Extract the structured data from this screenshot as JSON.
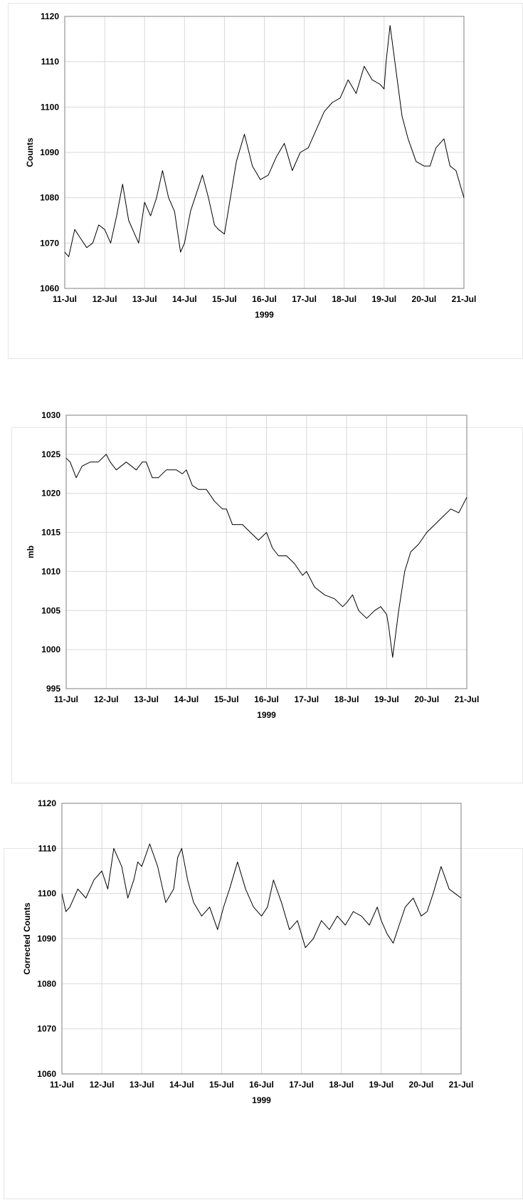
{
  "chart_data": [
    {
      "type": "line",
      "xlabel": "1999",
      "ylabel": "Counts",
      "ylim": [
        1060,
        1120
      ],
      "yticks": [
        1060,
        1070,
        1080,
        1090,
        1100,
        1110,
        1120
      ],
      "xlim": [
        0,
        10
      ],
      "xticks": [
        "11-Jul",
        "12-Jul",
        "13-Jul",
        "14-Jul",
        "15-Jul",
        "16-Jul",
        "17-Jul",
        "18-Jul",
        "19-Jul",
        "20-Jul",
        "21-Jul"
      ],
      "grid": true,
      "series": [
        {
          "x": [
            0,
            0.1,
            0.25,
            0.4,
            0.55,
            0.7,
            0.85,
            1.0,
            1.15,
            1.3,
            1.45,
            1.6,
            1.75,
            1.85,
            2.0,
            2.15,
            2.3,
            2.45,
            2.6,
            2.75,
            2.9,
            3.0,
            3.15,
            3.3,
            3.45,
            3.6,
            3.75,
            3.85,
            4.0,
            4.15,
            4.3,
            4.5,
            4.7,
            4.9,
            5.1,
            5.3,
            5.5,
            5.7,
            5.9,
            6.1,
            6.3,
            6.5,
            6.7,
            6.9,
            7.1,
            7.3,
            7.5,
            7.7,
            7.9,
            8.0,
            8.05,
            8.15,
            8.3,
            8.45,
            8.6,
            8.8,
            9.0,
            9.15,
            9.3,
            9.5,
            9.65,
            9.8,
            9.9,
            10.0
          ],
          "y": [
            1068,
            1067,
            1073,
            1071,
            1069,
            1070,
            1074,
            1073,
            1070,
            1076,
            1083,
            1075,
            1072,
            1070,
            1079,
            1076,
            1080,
            1086,
            1080,
            1077,
            1068,
            1070,
            1077,
            1081,
            1085,
            1080,
            1074,
            1073,
            1072,
            1080,
            1088,
            1094,
            1087,
            1084,
            1085,
            1089,
            1092,
            1086,
            1090,
            1091,
            1095,
            1099,
            1101,
            1102,
            1106,
            1103,
            1109,
            1106,
            1105,
            1104,
            1110,
            1118,
            1108,
            1098,
            1093,
            1088,
            1087,
            1087,
            1091,
            1093,
            1087,
            1086,
            1083,
            1080
          ]
        }
      ]
    },
    {
      "type": "line",
      "xlabel": "1999",
      "ylabel": "mb",
      "ylim": [
        995,
        1030
      ],
      "yticks": [
        995,
        1000,
        1005,
        1010,
        1015,
        1020,
        1025,
        1030
      ],
      "xlim": [
        0,
        10
      ],
      "xticks": [
        "11-Jul",
        "12-Jul",
        "13-Jul",
        "14-Jul",
        "15-Jul",
        "16-Jul",
        "17-Jul",
        "18-Jul",
        "19-Jul",
        "20-Jul",
        "21-Jul"
      ],
      "grid": true,
      "series": [
        {
          "x": [
            0,
            0.1,
            0.25,
            0.4,
            0.6,
            0.8,
            1.0,
            1.1,
            1.25,
            1.5,
            1.75,
            1.9,
            2.0,
            2.15,
            2.3,
            2.5,
            2.75,
            2.9,
            3.0,
            3.15,
            3.3,
            3.5,
            3.7,
            3.9,
            4.0,
            4.15,
            4.4,
            4.6,
            4.8,
            5.0,
            5.15,
            5.3,
            5.5,
            5.7,
            5.9,
            6.0,
            6.2,
            6.45,
            6.7,
            6.9,
            7.0,
            7.15,
            7.3,
            7.5,
            7.7,
            7.85,
            8.0,
            8.05,
            8.15,
            8.3,
            8.45,
            8.6,
            8.8,
            9.0,
            9.2,
            9.4,
            9.6,
            9.8,
            9.9,
            10.0
          ],
          "y": [
            1024.5,
            1024,
            1022,
            1023.5,
            1024,
            1024,
            1025,
            1024,
            1023,
            1024,
            1023,
            1024,
            1024,
            1022,
            1022,
            1023,
            1023,
            1022.5,
            1023,
            1021,
            1020.5,
            1020.5,
            1019,
            1018,
            1018,
            1016,
            1016,
            1015,
            1014,
            1015,
            1013,
            1012,
            1012,
            1011,
            1009.5,
            1010,
            1008,
            1007,
            1006.5,
            1005.5,
            1006,
            1007,
            1005,
            1004,
            1005,
            1005.5,
            1004.5,
            1003,
            999,
            1005,
            1010,
            1012.5,
            1013.5,
            1015,
            1016,
            1017,
            1018,
            1017.5,
            1018.5,
            1019.5
          ]
        }
      ]
    },
    {
      "type": "line",
      "xlabel": "1999",
      "ylabel": "Corrected Counts",
      "ylim": [
        1060,
        1120
      ],
      "yticks": [
        1060,
        1070,
        1080,
        1090,
        1100,
        1110,
        1120
      ],
      "xlim": [
        0,
        10
      ],
      "xticks": [
        "11-Jul",
        "12-Jul",
        "13-Jul",
        "14-Jul",
        "15-Jul",
        "16-Jul",
        "17-Jul",
        "18-Jul",
        "19-Jul",
        "20-Jul",
        "21-Jul"
      ],
      "grid": true,
      "series": [
        {
          "x": [
            0,
            0.1,
            0.2,
            0.4,
            0.6,
            0.8,
            1.0,
            1.15,
            1.3,
            1.5,
            1.65,
            1.8,
            1.9,
            2.0,
            2.2,
            2.4,
            2.6,
            2.8,
            2.9,
            3.0,
            3.15,
            3.3,
            3.5,
            3.7,
            3.9,
            4.05,
            4.2,
            4.4,
            4.6,
            4.8,
            5.0,
            5.15,
            5.3,
            5.5,
            5.7,
            5.9,
            6.1,
            6.3,
            6.5,
            6.7,
            6.9,
            7.1,
            7.3,
            7.5,
            7.7,
            7.9,
            8.0,
            8.15,
            8.3,
            8.45,
            8.6,
            8.8,
            9.0,
            9.15,
            9.3,
            9.5,
            9.7,
            9.85,
            10.0
          ],
          "y": [
            1100,
            1096,
            1097,
            1101,
            1099,
            1103,
            1105,
            1101,
            1110,
            1106,
            1099,
            1103,
            1107,
            1106,
            1111,
            1106,
            1098,
            1101,
            1108,
            1110,
            1103,
            1098,
            1095,
            1097,
            1092,
            1097,
            1101,
            1107,
            1101,
            1097,
            1095,
            1097,
            1103,
            1098,
            1092,
            1094,
            1088,
            1090,
            1094,
            1092,
            1095,
            1093,
            1096,
            1095,
            1093,
            1097,
            1094,
            1091,
            1089,
            1093,
            1097,
            1099,
            1095,
            1096,
            1100,
            1106,
            1101,
            1100,
            1099
          ]
        }
      ]
    }
  ]
}
